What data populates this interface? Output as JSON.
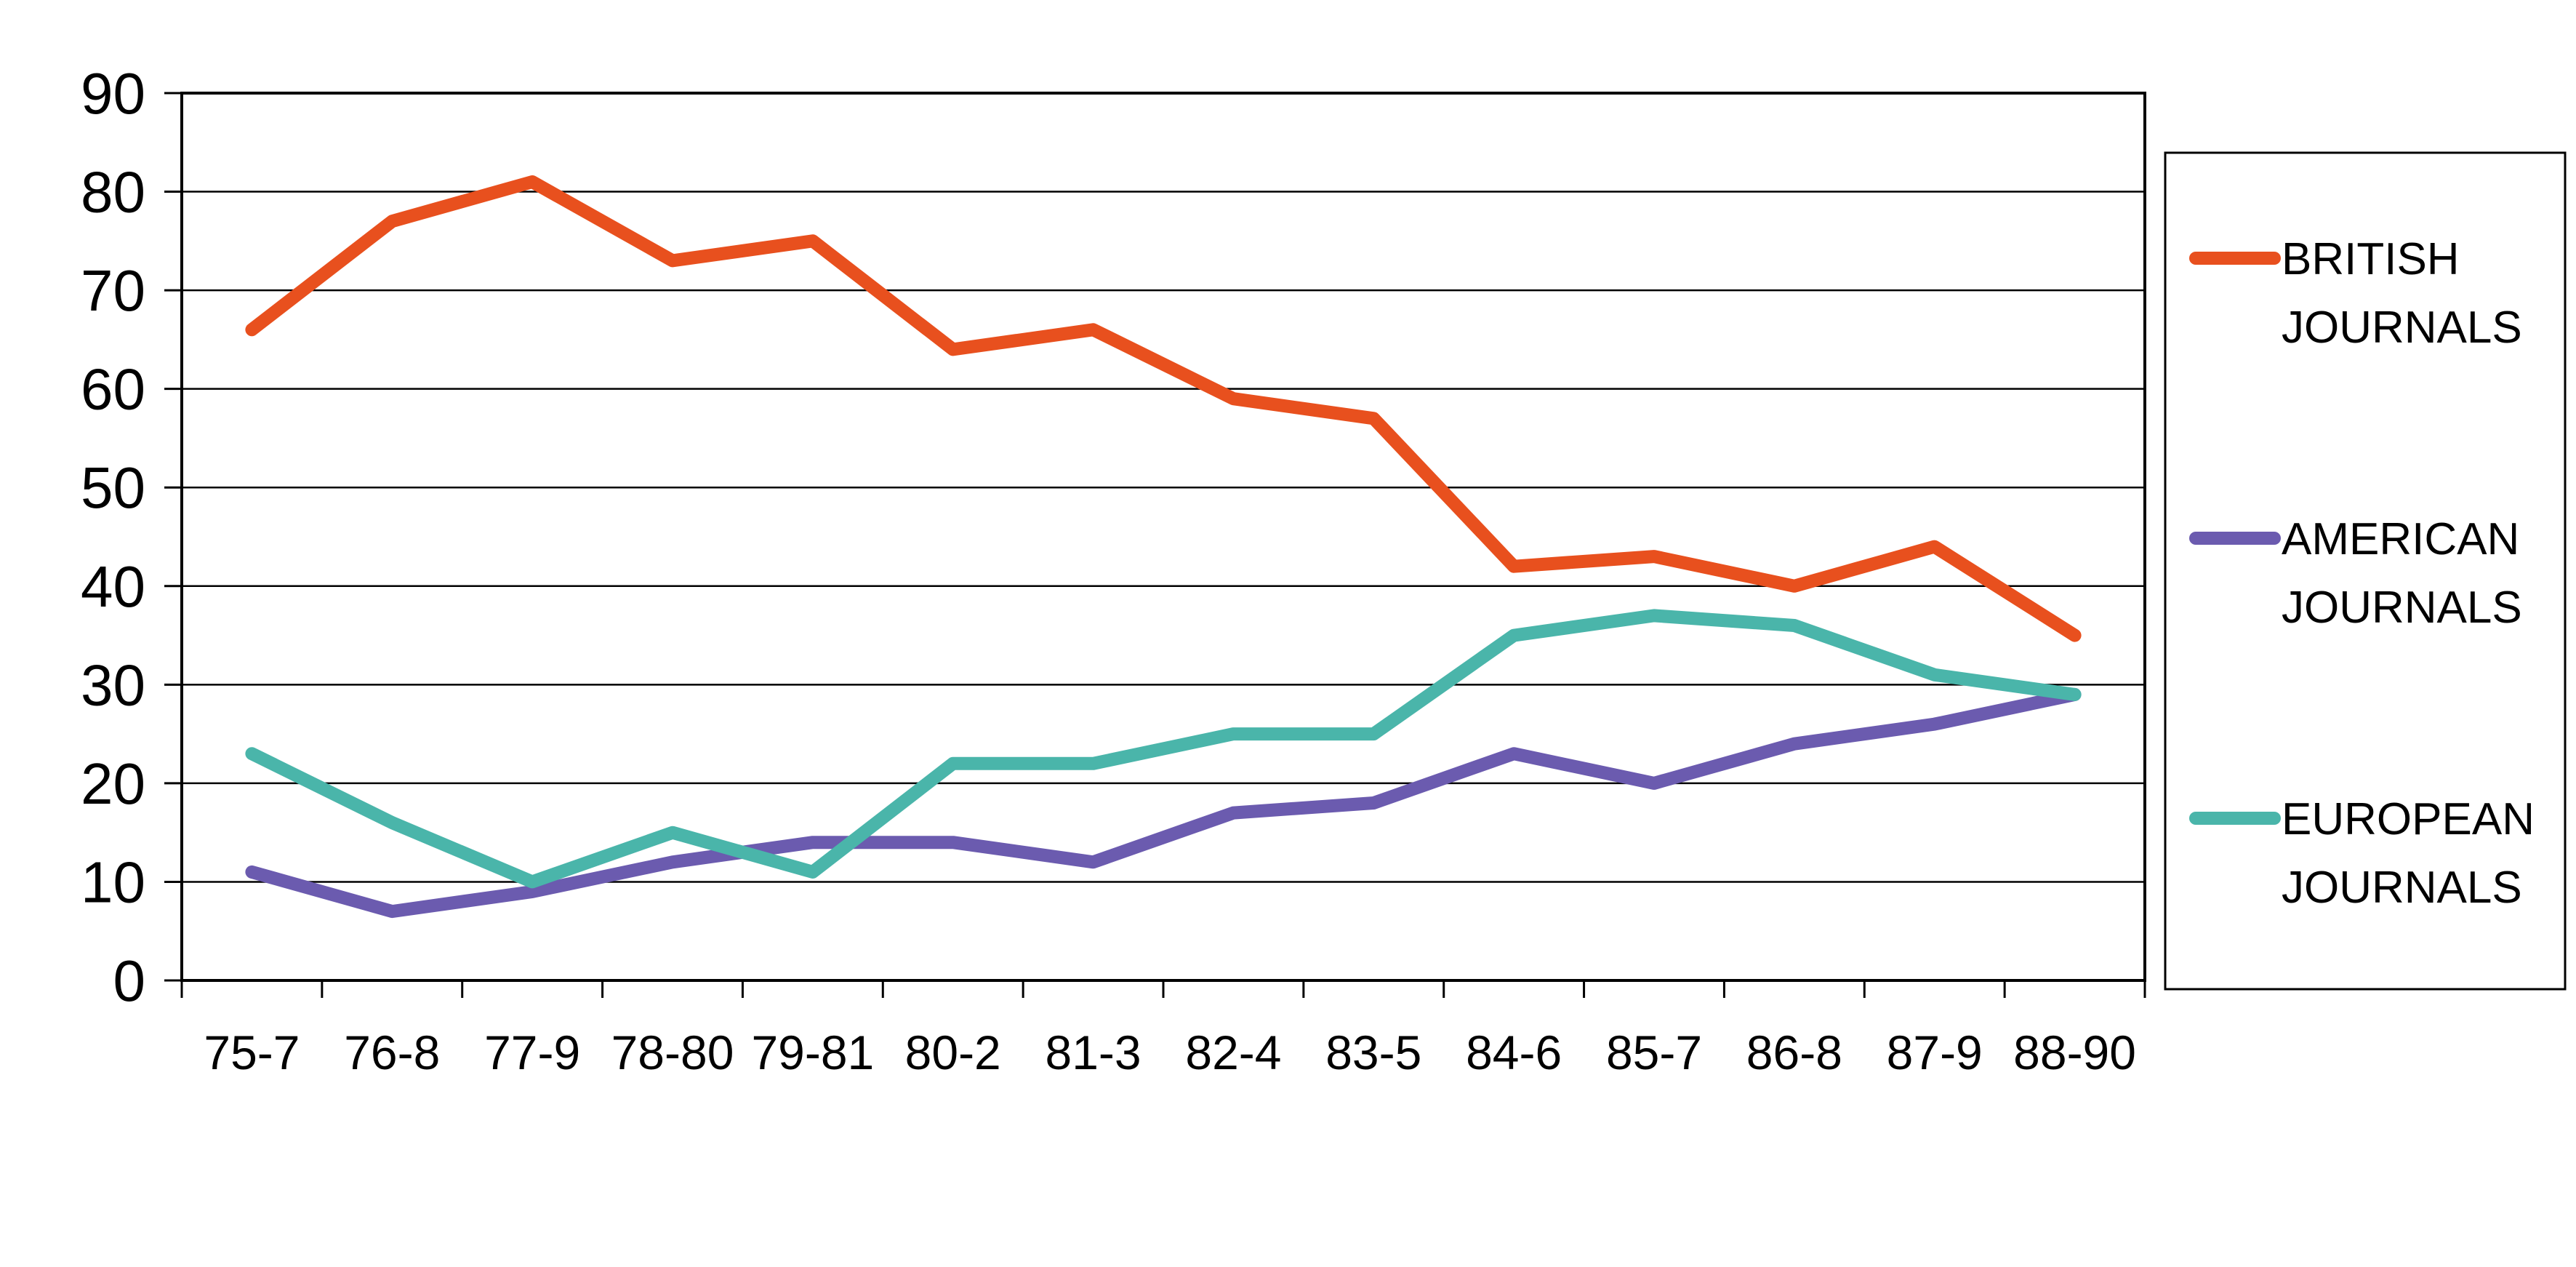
{
  "chart_data": {
    "type": "line",
    "title": "",
    "xlabel": "",
    "ylabel": "",
    "ylim": [
      0,
      90
    ],
    "y_ticks": [
      0,
      10,
      20,
      30,
      40,
      50,
      60,
      70,
      80,
      90
    ],
    "categories": [
      "75-7",
      "76-8",
      "77-9",
      "78-80",
      "79-81",
      "80-2",
      "81-3",
      "82-4",
      "83-5",
      "84-6",
      "85-7",
      "86-8",
      "87-9",
      "88-90"
    ],
    "grid": true,
    "legend_position": "right",
    "series": [
      {
        "name": "BRITISH JOURNALS",
        "legend_lines": [
          "BRITISH",
          "JOURNALS"
        ],
        "color": "#E8501E",
        "values": [
          66,
          77,
          81,
          73,
          75,
          64,
          66,
          59,
          57,
          42,
          43,
          40,
          44,
          35
        ]
      },
      {
        "name": "AMERICAN JOURNALS",
        "legend_lines": [
          "AMERICAN",
          "JOURNALS"
        ],
        "color": "#6B5BAF",
        "values": [
          11,
          7,
          9,
          12,
          14,
          14,
          12,
          17,
          18,
          23,
          20,
          24,
          26,
          29
        ]
      },
      {
        "name": "EUROPEAN JOURNALS",
        "legend_lines": [
          "EUROPEAN",
          "JOURNALS"
        ],
        "color": "#4AB5AA",
        "values": [
          23,
          16,
          10,
          15,
          11,
          22,
          22,
          25,
          25,
          35,
          37,
          36,
          31,
          29
        ]
      }
    ]
  }
}
